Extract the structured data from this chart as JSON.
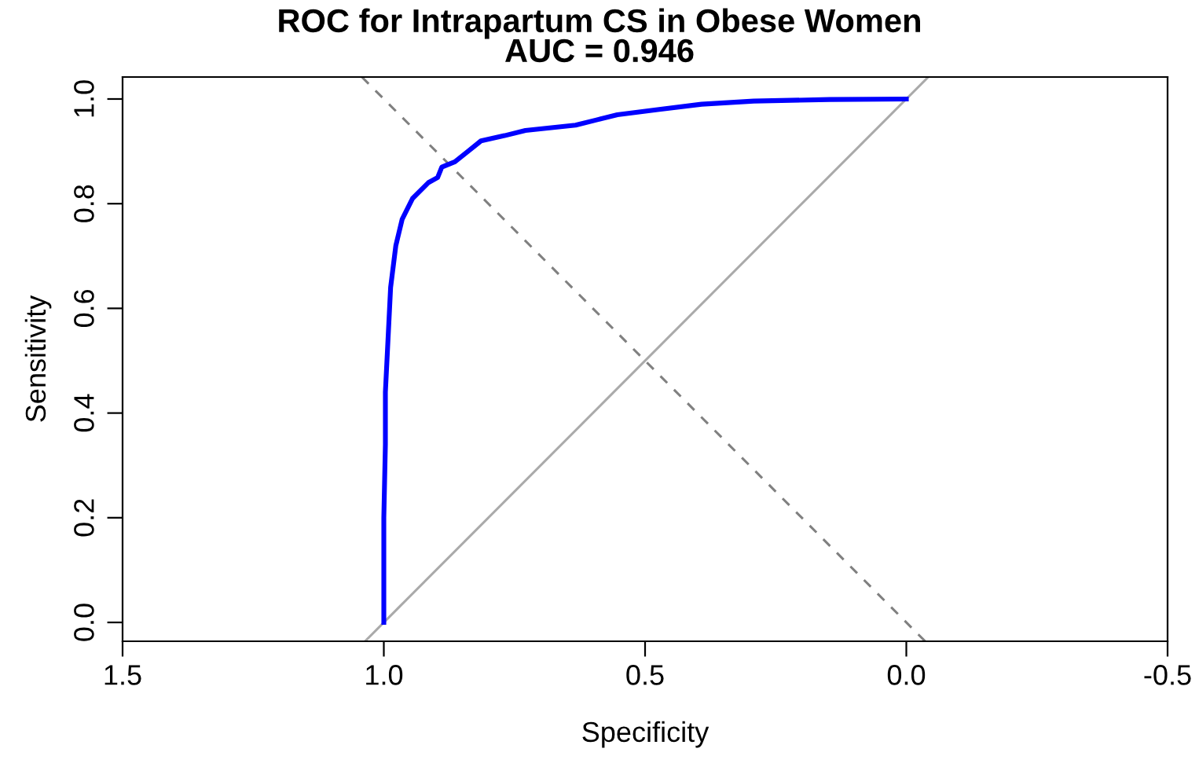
{
  "chart_data": {
    "type": "line",
    "title": "ROC for Intrapartum CS in Obese Women",
    "subtitle": "AUC = 0.946",
    "xlabel": "Specificity",
    "ylabel": "Sensitivity",
    "xlim": [
      1.5,
      -0.5
    ],
    "ylim": [
      -0.036,
      1.042
    ],
    "xticks": [
      1.5,
      {
        "value": 1.0,
        "label": "1.0"
      },
      0.5,
      {
        "value": 0.0,
        "label": "0.0"
      },
      -0.5
    ],
    "yticks": [
      {
        "value": 0.0,
        "label": "0.0"
      },
      0.2,
      0.4,
      0.6,
      0.8,
      {
        "value": 1.0,
        "label": "1.0"
      }
    ],
    "grid": false,
    "legend": false,
    "series": [
      {
        "color": "#aaaaaa",
        "line_style": "solid",
        "x": [
          1.036,
          -0.042
        ],
        "values": [
          -0.036,
          1.042
        ]
      },
      {
        "color": "#808080",
        "line_style": "dashed",
        "x": [
          1.042,
          -0.036
        ],
        "values": [
          1.042,
          -0.036
        ]
      },
      {
        "color": "#0000ff",
        "line_style": "solid",
        "x": [
          1.0,
          1.0,
          0.997,
          0.997,
          0.987,
          0.977,
          0.965,
          0.945,
          0.915,
          0.897,
          0.889,
          0.864,
          0.839,
          0.814,
          0.769,
          0.729,
          0.633,
          0.593,
          0.553,
          0.473,
          0.392,
          0.292,
          0.147,
          0.0
        ],
        "values": [
          0.0,
          0.2,
          0.34,
          0.44,
          0.64,
          0.72,
          0.77,
          0.81,
          0.84,
          0.85,
          0.87,
          0.88,
          0.9,
          0.92,
          0.93,
          0.94,
          0.95,
          0.96,
          0.97,
          0.98,
          0.99,
          0.996,
          0.999,
          1.0
        ]
      }
    ]
  }
}
